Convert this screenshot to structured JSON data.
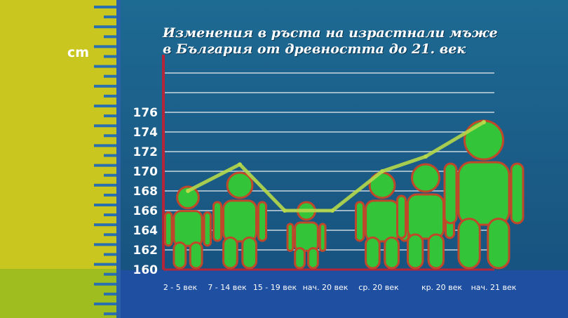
{
  "unit": "cm",
  "title_lines": [
    "Изменения в ръста на израстнали мъже",
    "в България от древността до 21. век"
  ],
  "colors": {
    "line": "#b7d94a",
    "figure": "#33c43a",
    "figure_outline": "#c0482a",
    "axis": "#b3263a"
  },
  "chart_data": {
    "type": "line",
    "title": "Изменения в ръста на израстнали мъже в България от древността до 21. век",
    "ylabel": "cm",
    "xlabel": "",
    "categories": [
      "2 - 5 век",
      "7 - 14 век",
      "15 - 19 век",
      "нач. 20 век",
      "ср. 20 век",
      "кр. 20 век",
      "нач. 21 век"
    ],
    "values": [
      168,
      170.7,
      166,
      166,
      170,
      171.5,
      175
    ],
    "yticks": [
      160,
      162,
      164,
      166,
      168,
      170,
      172,
      174,
      176
    ],
    "ylim": [
      160,
      176
    ],
    "grid": true
  }
}
